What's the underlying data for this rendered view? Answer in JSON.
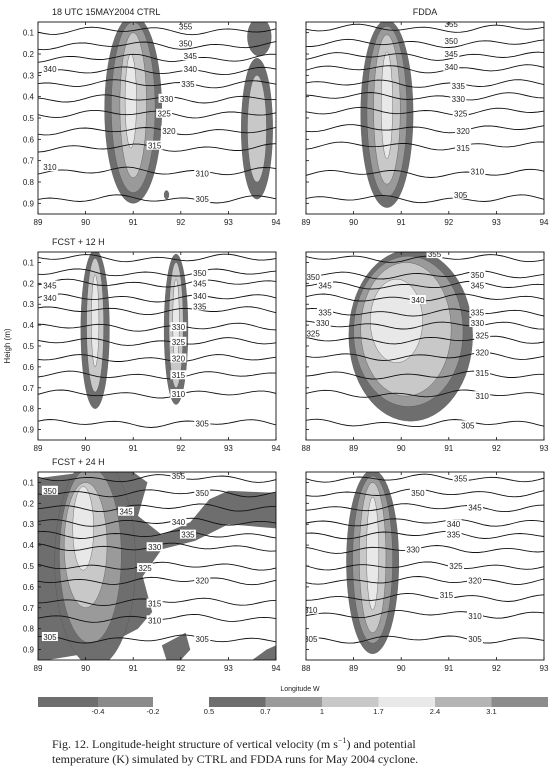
{
  "chart_data": [
    {
      "type": "contour",
      "panel": "CTRL 18 UTC",
      "title": "18 UTC   15MAY2004 CTRL",
      "xlim": [
        89,
        94
      ],
      "ylim": [
        0.05,
        0.95
      ],
      "xticks": [
        "89",
        "90",
        "91",
        "92",
        "93",
        "94"
      ],
      "yticks": [
        "0.1",
        "0.2",
        "0.3",
        "0.4",
        "0.5",
        "0.6",
        "0.7",
        "0.8",
        "0.9"
      ],
      "isentropes": [
        {
          "label": "355",
          "y": 0.09
        },
        {
          "label": "350",
          "y": 0.16
        },
        {
          "label": "345",
          "y": 0.22
        },
        {
          "label": "340",
          "y": 0.28
        },
        {
          "label": "335",
          "y": 0.34
        },
        {
          "label": "330",
          "y": 0.41
        },
        {
          "label": "325",
          "y": 0.48
        },
        {
          "label": "320",
          "y": 0.56
        },
        {
          "label": "315",
          "y": 0.64
        },
        {
          "label": "310",
          "y": 0.75
        },
        {
          "label": "305",
          "y": 0.88
        }
      ],
      "contour_labels": [
        {
          "text": "355",
          "x": 92.1,
          "y": 0.07
        },
        {
          "text": "350",
          "x": 92.1,
          "y": 0.15
        },
        {
          "text": "345",
          "x": 92.2,
          "y": 0.21
        },
        {
          "text": "340",
          "x": 92.2,
          "y": 0.27
        },
        {
          "text": "340",
          "x": 89.25,
          "y": 0.27
        },
        {
          "text": "335",
          "x": 92.15,
          "y": 0.34
        },
        {
          "text": "330",
          "x": 91.7,
          "y": 0.41
        },
        {
          "text": "325",
          "x": 91.65,
          "y": 0.48
        },
        {
          "text": "320",
          "x": 91.75,
          "y": 0.56
        },
        {
          "text": "315",
          "x": 91.45,
          "y": 0.63
        },
        {
          "text": "310",
          "x": 92.45,
          "y": 0.76
        },
        {
          "text": "310",
          "x": 89.25,
          "y": 0.73
        },
        {
          "text": "305",
          "x": 92.45,
          "y": 0.88
        }
      ],
      "shaded": [
        {
          "level": 0.5,
          "x": [
            91.6,
            91.55,
            91.7,
            91.6,
            91.55
          ],
          "y": [
            0.05,
            0.3,
            0.55,
            0.8,
            0.88
          ],
          "xw": [
            90.4,
            90.35,
            90.25,
            90.4,
            90.85
          ]
        },
        {
          "level": 0.7,
          "x": [
            91.4,
            91.45,
            91.5,
            91.35,
            91.2
          ],
          "y": [
            0.07,
            0.3,
            0.55,
            0.78,
            0.84
          ],
          "xw": [
            90.55,
            90.45,
            90.4,
            90.55,
            90.95
          ]
        },
        {
          "level": 1.0,
          "x": [
            91.2,
            91.3,
            91.3,
            91.15,
            91.0
          ],
          "y": [
            0.12,
            0.35,
            0.55,
            0.74,
            0.79
          ],
          "xw": [
            90.75,
            90.6,
            90.55,
            90.7,
            90.95
          ]
        },
        {
          "level": 1.7,
          "x": [
            91.0,
            91.1,
            91.0
          ],
          "y": [
            0.25,
            0.45,
            0.6
          ],
          "xw": [
            90.85,
            90.8,
            90.85
          ]
        }
      ]
    },
    {
      "type": "contour",
      "panel": "FDDA 18 UTC",
      "title": "FDDA",
      "xlim": [
        89,
        94
      ],
      "ylim": [
        0.05,
        0.95
      ],
      "xticks": [
        "89",
        "90",
        "91",
        "92",
        "93",
        "94"
      ],
      "yticks": [],
      "isentropes": [
        {
          "label": "355",
          "y": 0.08
        },
        {
          "label": "350",
          "y": 0.15
        },
        {
          "label": "345",
          "y": 0.21
        },
        {
          "label": "340",
          "y": 0.27
        },
        {
          "label": "335",
          "y": 0.34
        },
        {
          "label": "330",
          "y": 0.4
        },
        {
          "label": "325",
          "y": 0.47
        },
        {
          "label": "320",
          "y": 0.55
        },
        {
          "label": "315",
          "y": 0.63
        },
        {
          "label": "310",
          "y": 0.76
        },
        {
          "label": "305",
          "y": 0.88
        }
      ],
      "contour_labels": [
        {
          "text": "355",
          "x": 92.05,
          "y": 0.06
        },
        {
          "text": "350",
          "x": 92.05,
          "y": 0.14
        },
        {
          "text": "345",
          "x": 92.05,
          "y": 0.2
        },
        {
          "text": "340",
          "x": 92.05,
          "y": 0.26
        },
        {
          "text": "335",
          "x": 92.2,
          "y": 0.35
        },
        {
          "text": "330",
          "x": 92.2,
          "y": 0.41
        },
        {
          "text": "325",
          "x": 92.25,
          "y": 0.48
        },
        {
          "text": "320",
          "x": 92.3,
          "y": 0.56
        },
        {
          "text": "315",
          "x": 92.3,
          "y": 0.64
        },
        {
          "text": "310",
          "x": 92.6,
          "y": 0.75
        },
        {
          "text": "305",
          "x": 92.25,
          "y": 0.86
        }
      ]
    },
    {
      "type": "contour",
      "panel": "CTRL FCST + 12 H",
      "title": "FCST + 12 H",
      "xlim": [
        89,
        94
      ],
      "ylim": [
        0.05,
        0.95
      ],
      "xticks": [
        "89",
        "90",
        "91",
        "92",
        "93",
        "94"
      ],
      "yticks": [
        "0.1",
        "0.2",
        "0.3",
        "0.4",
        "0.5",
        "0.6",
        "0.7",
        "0.8",
        "0.9"
      ],
      "ylabel": "Heigh (m)",
      "isentropes": [
        {
          "label": "355",
          "y": 0.08
        },
        {
          "label": "350",
          "y": 0.15
        },
        {
          "label": "345",
          "y": 0.2
        },
        {
          "label": "340",
          "y": 0.27
        },
        {
          "label": "335",
          "y": 0.33
        },
        {
          "label": "330",
          "y": 0.41
        },
        {
          "label": "325",
          "y": 0.48
        },
        {
          "label": "320",
          "y": 0.56
        },
        {
          "label": "315",
          "y": 0.64
        },
        {
          "label": "310",
          "y": 0.73
        },
        {
          "label": "305",
          "y": 0.87
        }
      ],
      "contour_labels": [
        {
          "text": "350",
          "x": 92.4,
          "y": 0.15
        },
        {
          "text": "345",
          "x": 92.4,
          "y": 0.2
        },
        {
          "text": "345",
          "x": 89.25,
          "y": 0.21
        },
        {
          "text": "340",
          "x": 92.4,
          "y": 0.26
        },
        {
          "text": "340",
          "x": 89.25,
          "y": 0.27
        },
        {
          "text": "335",
          "x": 92.4,
          "y": 0.31
        },
        {
          "text": "330",
          "x": 91.95,
          "y": 0.41
        },
        {
          "text": "325",
          "x": 91.95,
          "y": 0.48
        },
        {
          "text": "320",
          "x": 91.95,
          "y": 0.56
        },
        {
          "text": "315",
          "x": 91.95,
          "y": 0.64
        },
        {
          "text": "310",
          "x": 91.95,
          "y": 0.73
        },
        {
          "text": "305",
          "x": 92.45,
          "y": 0.87
        }
      ]
    },
    {
      "type": "contour",
      "panel": "FDDA FCST + 12 H",
      "title": "",
      "xlim": [
        88,
        93
      ],
      "ylim": [
        0.05,
        0.95
      ],
      "xticks": [
        "88",
        "89",
        "90",
        "91",
        "92",
        "93"
      ],
      "yticks": [],
      "isentropes": [
        {
          "label": "355",
          "y": 0.08
        },
        {
          "label": "350",
          "y": 0.16
        },
        {
          "label": "345",
          "y": 0.21
        },
        {
          "label": "340",
          "y": 0.27
        },
        {
          "label": "335",
          "y": 0.34
        },
        {
          "label": "330",
          "y": 0.4
        },
        {
          "label": "325",
          "y": 0.47
        },
        {
          "label": "320",
          "y": 0.55
        },
        {
          "label": "315",
          "y": 0.64
        },
        {
          "label": "310",
          "y": 0.73
        },
        {
          "label": "305",
          "y": 0.87
        }
      ],
      "contour_labels": [
        {
          "text": "355",
          "x": 90.7,
          "y": 0.06
        },
        {
          "text": "350",
          "x": 91.6,
          "y": 0.16
        },
        {
          "text": "350",
          "x": 88.15,
          "y": 0.17
        },
        {
          "text": "345",
          "x": 91.6,
          "y": 0.21
        },
        {
          "text": "345",
          "x": 88.4,
          "y": 0.21
        },
        {
          "text": "340",
          "x": 90.35,
          "y": 0.28
        },
        {
          "text": "335",
          "x": 91.6,
          "y": 0.34
        },
        {
          "text": "335",
          "x": 88.4,
          "y": 0.34
        },
        {
          "text": "330",
          "x": 91.6,
          "y": 0.39
        },
        {
          "text": "330",
          "x": 88.35,
          "y": 0.39
        },
        {
          "text": "325",
          "x": 91.7,
          "y": 0.45
        },
        {
          "text": "325",
          "x": 88.15,
          "y": 0.44
        },
        {
          "text": "320",
          "x": 91.7,
          "y": 0.53
        },
        {
          "text": "315",
          "x": 91.7,
          "y": 0.63
        },
        {
          "text": "310",
          "x": 91.7,
          "y": 0.74
        },
        {
          "text": "305",
          "x": 91.4,
          "y": 0.88
        }
      ]
    },
    {
      "type": "contour",
      "panel": "CTRL FCST + 24 H",
      "title": "FCST + 24 H",
      "xlim": [
        89,
        94
      ],
      "ylim": [
        0.05,
        0.95
      ],
      "xticks": [
        "89",
        "90",
        "91",
        "92",
        "93",
        "94"
      ],
      "xlabel": "Longitude W",
      "yticks": [
        "0.1",
        "0.2",
        "0.3",
        "0.4",
        "0.5",
        "0.6",
        "0.7",
        "0.8",
        "0.9"
      ],
      "isentropes": [
        {
          "label": "355",
          "y": 0.08
        },
        {
          "label": "350",
          "y": 0.15
        },
        {
          "label": "345",
          "y": 0.22
        },
        {
          "label": "340",
          "y": 0.29
        },
        {
          "label": "335",
          "y": 0.35
        },
        {
          "label": "330",
          "y": 0.41
        },
        {
          "label": "325",
          "y": 0.5
        },
        {
          "label": "320",
          "y": 0.57
        },
        {
          "label": "315",
          "y": 0.67
        },
        {
          "label": "310",
          "y": 0.75
        },
        {
          "label": "305",
          "y": 0.85
        }
      ],
      "contour_labels": [
        {
          "text": "355",
          "x": 91.95,
          "y": 0.07
        },
        {
          "text": "350",
          "x": 89.25,
          "y": 0.14
        },
        {
          "text": "350",
          "x": 92.45,
          "y": 0.15
        },
        {
          "text": "345",
          "x": 90.85,
          "y": 0.24
        },
        {
          "text": "340",
          "x": 91.95,
          "y": 0.29
        },
        {
          "text": "335",
          "x": 92.15,
          "y": 0.35
        },
        {
          "text": "330",
          "x": 91.45,
          "y": 0.41
        },
        {
          "text": "325",
          "x": 91.25,
          "y": 0.51
        },
        {
          "text": "320",
          "x": 92.45,
          "y": 0.57
        },
        {
          "text": "315",
          "x": 91.45,
          "y": 0.68
        },
        {
          "text": "310",
          "x": 91.45,
          "y": 0.76
        },
        {
          "text": "305",
          "x": 89.25,
          "y": 0.84
        },
        {
          "text": "305",
          "x": 92.45,
          "y": 0.85
        }
      ]
    },
    {
      "type": "contour",
      "panel": "FDDA FCST + 24 H",
      "title": "",
      "xlim": [
        88,
        93
      ],
      "ylim": [
        0.05,
        0.95
      ],
      "xticks": [
        "88",
        "89",
        "90",
        "91",
        "92",
        "93"
      ],
      "yticks": [],
      "isentropes": [
        {
          "label": "355",
          "y": 0.08
        },
        {
          "label": "350",
          "y": 0.15
        },
        {
          "label": "345",
          "y": 0.22
        },
        {
          "label": "340",
          "y": 0.29
        },
        {
          "label": "335",
          "y": 0.35
        },
        {
          "label": "330",
          "y": 0.42
        },
        {
          "label": "325",
          "y": 0.5
        },
        {
          "label": "320",
          "y": 0.57
        },
        {
          "label": "315",
          "y": 0.65
        },
        {
          "label": "310",
          "y": 0.73
        },
        {
          "label": "305",
          "y": 0.85
        }
      ],
      "contour_labels": [
        {
          "text": "355",
          "x": 91.25,
          "y": 0.08
        },
        {
          "text": "350",
          "x": 90.35,
          "y": 0.15
        },
        {
          "text": "345",
          "x": 91.55,
          "y": 0.22
        },
        {
          "text": "340",
          "x": 91.1,
          "y": 0.3
        },
        {
          "text": "335",
          "x": 91.1,
          "y": 0.35
        },
        {
          "text": "330",
          "x": 90.25,
          "y": 0.42
        },
        {
          "text": "325",
          "x": 91.15,
          "y": 0.5
        },
        {
          "text": "320",
          "x": 91.55,
          "y": 0.57
        },
        {
          "text": "315",
          "x": 90.95,
          "y": 0.64
        },
        {
          "text": "310",
          "x": 91.55,
          "y": 0.74
        },
        {
          "text": "310",
          "x": 88.1,
          "y": 0.71
        },
        {
          "text": "305",
          "x": 91.55,
          "y": 0.85
        },
        {
          "text": "305",
          "x": 88.1,
          "y": 0.85
        }
      ]
    }
  ],
  "colorbar": {
    "negative_labels": [
      "-0.4",
      "-0.2"
    ],
    "positive_labels": [
      "0.5",
      "0.7",
      "1",
      "1.7",
      "2.4",
      "3.1"
    ],
    "colors": {
      "neg_dark": "#6e6e6e",
      "neg_light": "#8a8a8a",
      "pos": [
        "#6e6e6e",
        "#9a9a9a",
        "#c8c8c8",
        "#e8e8e8",
        "#b4b4b4",
        "#8c8c8c"
      ]
    }
  },
  "caption": {
    "line1_a": "Fig. 12. Longitude-height structure of vertical velocity (m s",
    "line1_sup": "−1",
    "line1_b": ") and potential",
    "line2": "temperature (K) simulated by CTRL and FDDA runs for May 2004 cyclone."
  },
  "colors": {
    "shade_05": "#6e6e6e",
    "shade_07": "#9a9a9a",
    "shade_10": "#c8c8c8",
    "shade_17": "#e8e8e8",
    "neg": "#6e6e6e",
    "line": "#111111"
  }
}
